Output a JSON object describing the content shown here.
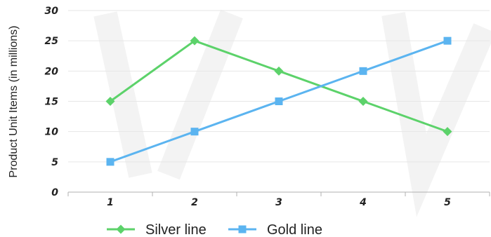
{
  "chart_data": {
    "type": "line",
    "title": "",
    "xlabel": "",
    "ylabel": "Product Unit Items (in millions)",
    "categories": [
      "1",
      "2",
      "3",
      "4",
      "5"
    ],
    "x": [
      1,
      2,
      3,
      4,
      5
    ],
    "ylim": [
      0,
      30
    ],
    "yticks": [
      0,
      5,
      10,
      15,
      20,
      25,
      30
    ],
    "grid": "horizontal",
    "legend_position": "bottom",
    "series": [
      {
        "name": "Silver line",
        "values": [
          15,
          25,
          20,
          15,
          10
        ],
        "color": "#5cd26a",
        "marker": "diamond"
      },
      {
        "name": "Gold line",
        "values": [
          5,
          10,
          15,
          20,
          25
        ],
        "color": "#5bb4f0",
        "marker": "square"
      }
    ]
  }
}
